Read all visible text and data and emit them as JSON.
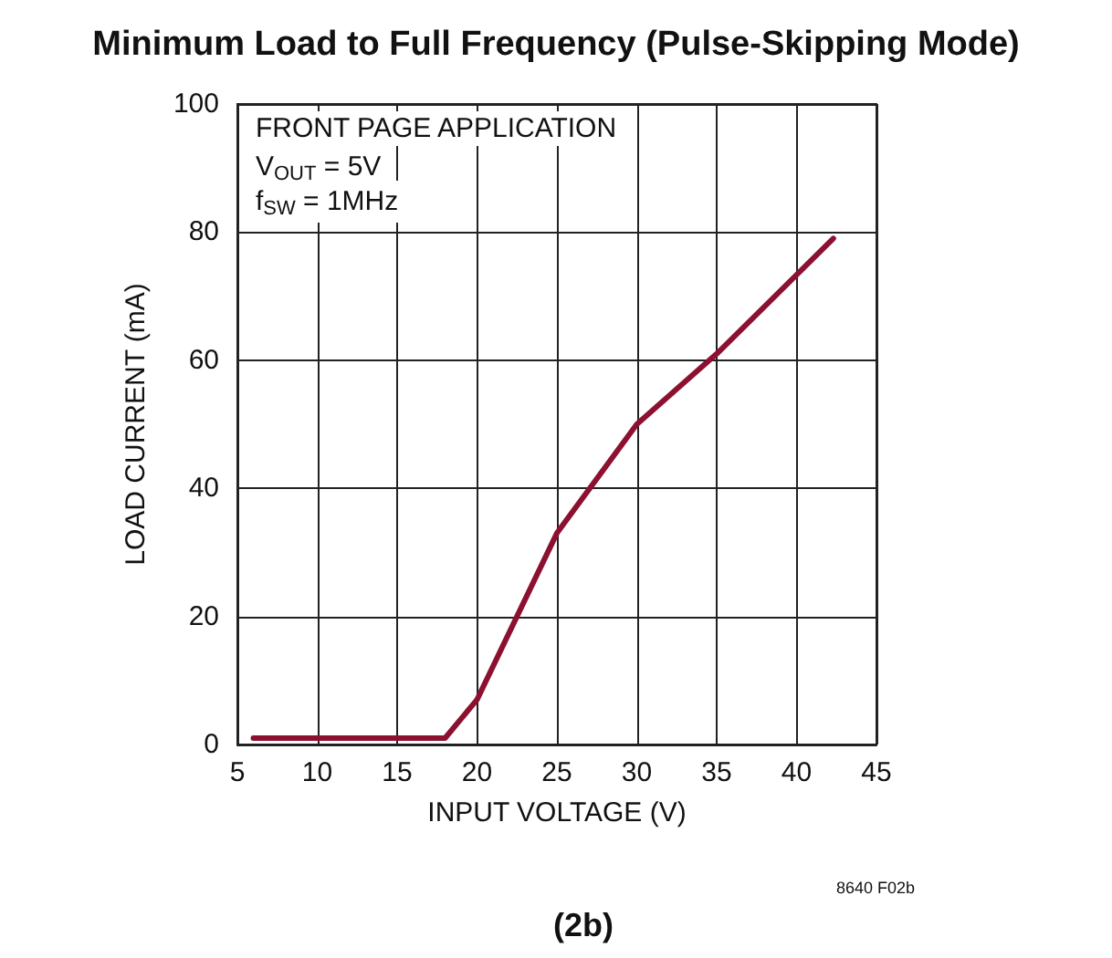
{
  "chart_data": {
    "type": "line",
    "title": "Minimum Load to Full Frequency (Pulse-Skipping Mode)",
    "xlabel": "INPUT VOLTAGE (V)",
    "ylabel": "LOAD CURRENT (mA)",
    "annotations": [
      "FRONT PAGE APPLICATION",
      "V$_{OUT}$ = 5V",
      "f$_{SW}$ = 1MHz",
      "8640 F02b",
      "(2b)"
    ],
    "series": [
      {
        "color": "#8c1030",
        "x": [
          6,
          18,
          20,
          25,
          30,
          35,
          42.3
        ],
        "values": [
          1,
          1,
          7,
          33,
          50,
          61,
          79
        ]
      }
    ],
    "xlim": [
      5,
      45
    ],
    "xticks": [
      5,
      10,
      15,
      20,
      25,
      30,
      35,
      40,
      45
    ],
    "ylim": [
      0,
      100
    ],
    "yticks": [
      0,
      20,
      40,
      60,
      80,
      100
    ],
    "grid": true,
    "marker": "none",
    "line_style": "solid"
  }
}
